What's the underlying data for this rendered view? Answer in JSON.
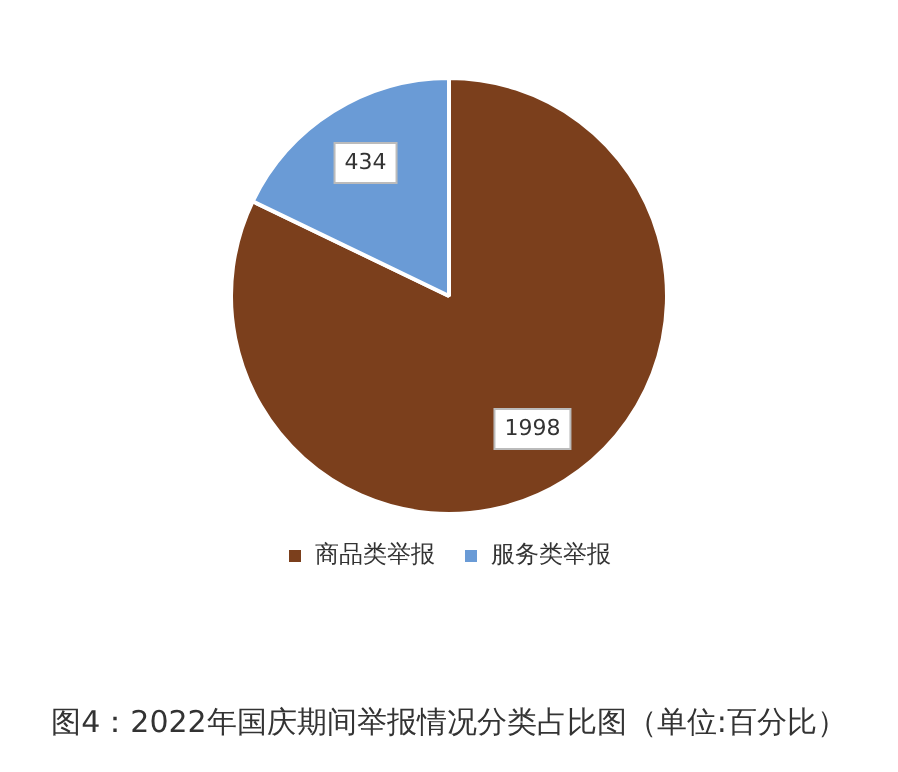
{
  "chart_data": {
    "type": "pie",
    "categories": [
      "商品类举报",
      "服务类举报"
    ],
    "values": [
      1998,
      434
    ],
    "colors": [
      "#7b3f1c",
      "#6a9bd6"
    ],
    "data_labels": true,
    "legend": "bottom",
    "annotations": [
      "图4：2022年国庆期间举报情况分类占比图（单位:百分比）"
    ]
  }
}
